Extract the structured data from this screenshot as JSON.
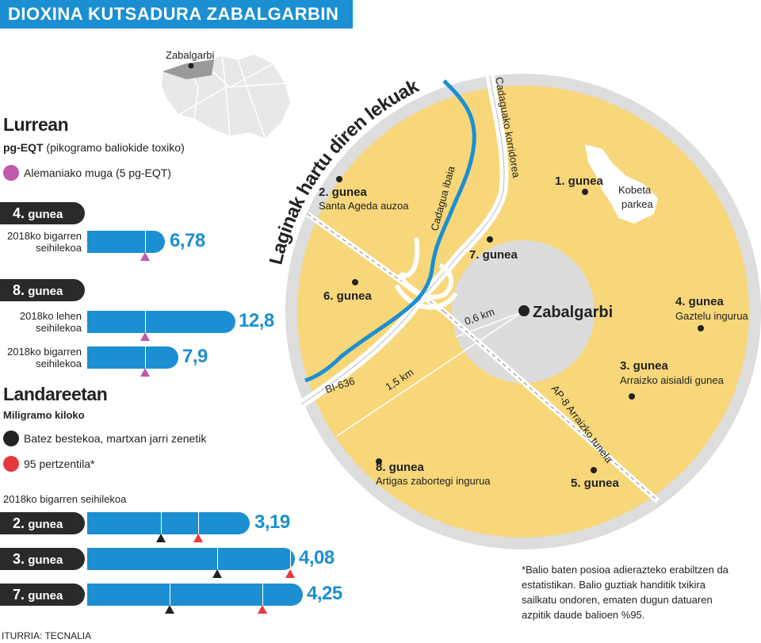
{
  "title": "DIOXINA KUTSADURA ZABALGARBIN",
  "locator_label": "Zabalgarbi",
  "lurrean": {
    "heading": "Lurrean",
    "unit_bold": "pg-EQT",
    "unit_rest": " (pikogramo baliokide toxiko)",
    "legend_label": "Alemaniako muga (5 pg-EQT)",
    "legend_color": "#c05aaa",
    "limit_value": 5,
    "groups": [
      {
        "zone": "4.",
        "zone_word": "gunea",
        "rows": [
          {
            "label_1": "2018ko bigarren",
            "label_2": "seihilekoa",
            "value": 6.78,
            "display": "6,78"
          }
        ]
      },
      {
        "zone": "8.",
        "zone_word": "gunea",
        "rows": [
          {
            "label_1": "2018ko lehen",
            "label_2": "seihilekoa",
            "value": 12.8,
            "display": "12,8"
          },
          {
            "label_1": "2018ko bigarren",
            "label_2": "seihilekoa",
            "value": 7.9,
            "display": "7,9"
          }
        ]
      }
    ]
  },
  "landareetan": {
    "heading": "Landareetan",
    "unit": "Miligramo kiloko",
    "legend": [
      {
        "label": "Batez bestekoa, martxan jarri zenetik",
        "color": "#222222"
      },
      {
        "label": "95 pertzentila*",
        "color": "#e5393f"
      }
    ],
    "period": "2018ko bigarren seihilekoa",
    "rows": [
      {
        "zone": "2.",
        "zone_word": "gunea",
        "value": 3.19,
        "display": "3,19"
      },
      {
        "zone": "3.",
        "zone_word": "gunea",
        "value": 4.08,
        "display": "4,08"
      },
      {
        "zone": "7.",
        "zone_word": "gunea",
        "value": 4.25,
        "display": "4,25"
      }
    ]
  },
  "map": {
    "curved_title": "Laginak hartu diren lekuak",
    "center": "Zabalgarbi",
    "inner_radius": "0,6 km",
    "outer_radius": "1,5 km",
    "points": [
      {
        "name": "1. gunea",
        "sub": ""
      },
      {
        "name": "2. gunea",
        "sub": "Santa Ageda auzoa"
      },
      {
        "name": "3. gunea",
        "sub": "Arraizko aisialdi gunea"
      },
      {
        "name": "4. gunea",
        "sub": "Gaztelu ingurua"
      },
      {
        "name": "5. gunea",
        "sub": ""
      },
      {
        "name": "6. gunea",
        "sub": ""
      },
      {
        "name": "7. gunea",
        "sub": ""
      },
      {
        "name": "8. gunea",
        "sub": "Artigas zabortegi ingurua"
      }
    ],
    "park_1": "Kobeta",
    "park_2": "parkea",
    "road_corridor": "Cadaguako korridorea",
    "river": "Cadagua ibaia",
    "road_bi": "BI-636",
    "tunnel": "AP-8 Arraizko tunela",
    "colors": {
      "zone_fill": "#f7d77a",
      "ring": "#dddddd",
      "inner": "#dcdcdc",
      "river": "#1b8fd2"
    }
  },
  "footnote": {
    "line1": "*Balio baten posioa adierazteko erabiltzen da",
    "line2": "estatistikan. Balio guztiak handitik txikira",
    "line3": "sailkatu ondoren, ematen dugun datuaren",
    "line4": "azpitik daude balioen %95."
  },
  "source": "ITURRIA: TECNALIA"
}
